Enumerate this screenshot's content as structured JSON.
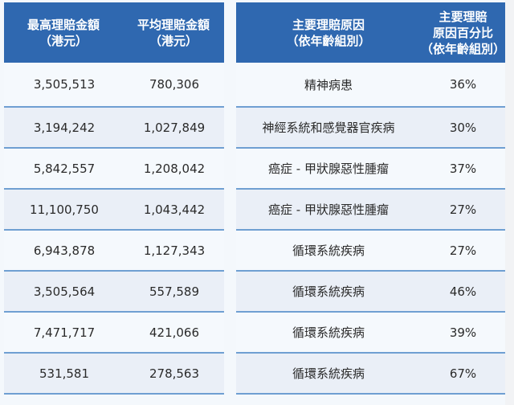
{
  "left_table": {
    "headers": [
      "最高理賠金額\n（港元）",
      "平均理賠金額\n（港元）"
    ],
    "rows": [
      [
        "3,505,513",
        "780,306"
      ],
      [
        "3,194,242",
        "1,027,849"
      ],
      [
        "5,842,557",
        "1,208,042"
      ],
      [
        "11,100,750",
        "1,043,442"
      ],
      [
        "6,943,878",
        "1,127,343"
      ],
      [
        "3,505,564",
        "557,589"
      ],
      [
        "7,471,717",
        "421,066"
      ],
      [
        "531,581",
        "278,563"
      ]
    ]
  },
  "right_table": {
    "headers": [
      "主要理賠原因\n（依年齡組別）",
      "主要理賠\n原因百分比\n（依年齡組別）"
    ],
    "rows": [
      [
        "精神病患",
        "36%"
      ],
      [
        "神經系統和感覺器官疾病",
        "30%"
      ],
      [
        "癌症 - 甲狀腺惡性腫瘤",
        "37%"
      ],
      [
        "癌症 - 甲狀腺惡性腫瘤",
        "27%"
      ],
      [
        "循環系統疾病",
        "27%"
      ],
      [
        "循環系統疾病",
        "46%"
      ],
      [
        "循環系統疾病",
        "39%"
      ],
      [
        "循環系統疾病",
        "67%"
      ]
    ]
  },
  "colors": {
    "header_bg": "#2f68b0",
    "header_text": "#ffffff",
    "row_odd": "#f5f9fd",
    "row_even": "#eaeff7",
    "divider": "#6f9fd2"
  }
}
